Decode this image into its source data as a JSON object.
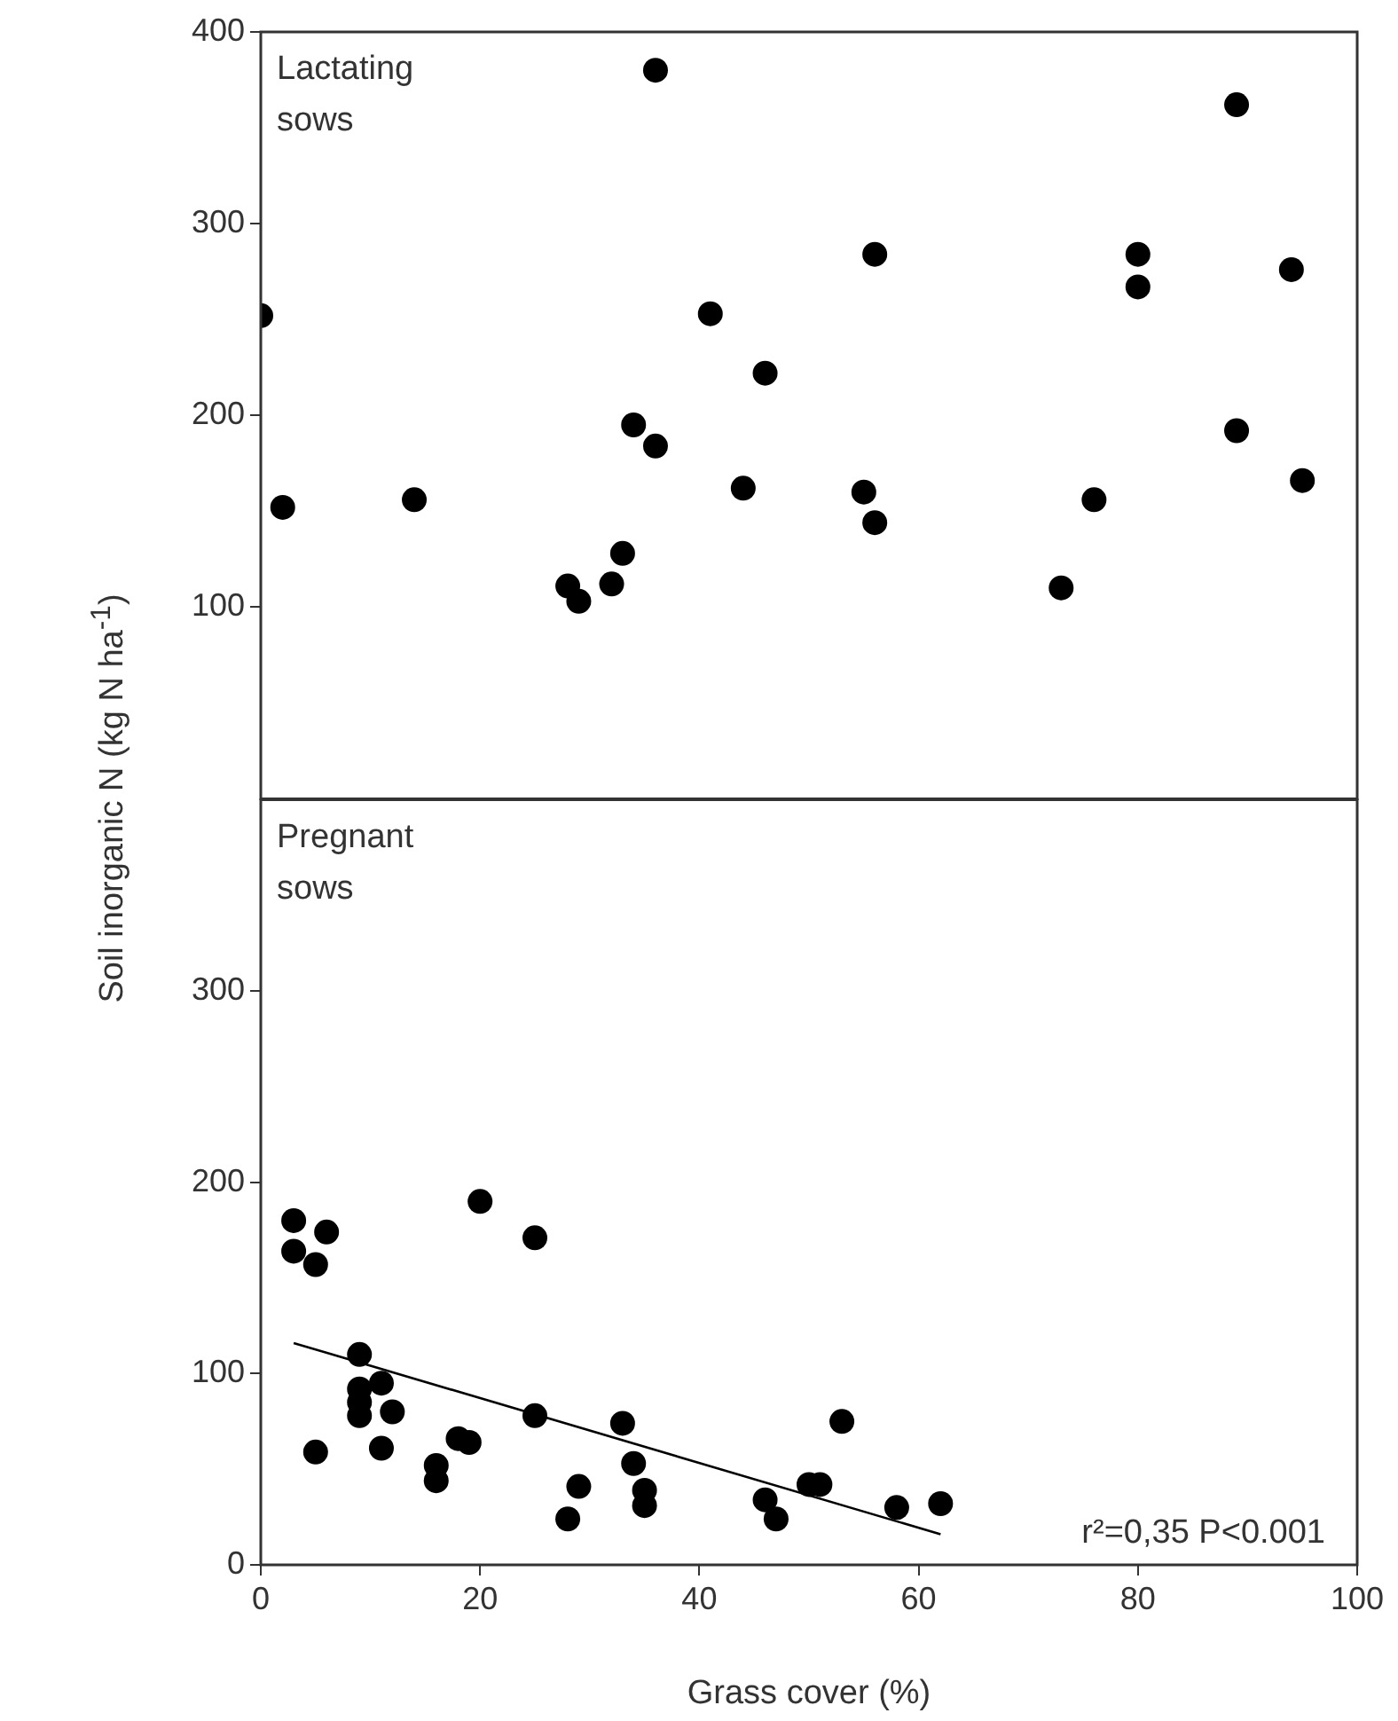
{
  "chart_data": [
    {
      "type": "scatter",
      "ylabel": "Soil inorganic N (kg N ha$^{-1}$)",
      "annotations": [
        "Lactating sows"
      ],
      "xlim": [
        0,
        100
      ],
      "xticks": [
        0,
        20,
        40,
        60,
        80,
        100
      ],
      "ylim": [
        0,
        400
      ],
      "yticks": [
        100,
        200,
        300,
        400
      ],
      "tick_labels": "y",
      "marker": "circle",
      "series": [
        {
          "color": "#000000",
          "x": [
            0,
            2,
            14,
            28,
            29,
            32,
            33,
            34,
            36,
            36,
            41,
            44,
            46,
            55,
            56,
            56,
            73,
            76,
            80,
            80,
            89,
            89,
            94,
            95
          ],
          "values": [
            252,
            152,
            156,
            111,
            103,
            112,
            128,
            195,
            184,
            380,
            253,
            162,
            222,
            160,
            144,
            284,
            110,
            156,
            284,
            267,
            362,
            192,
            276,
            166
          ]
        }
      ]
    },
    {
      "type": "scatter",
      "xlabel": "Grass cover (%)",
      "annotations": [
        "Pregnant sows",
        "r²=0,35 P<0.001"
      ],
      "xlim": [
        0,
        100
      ],
      "xticks": [
        0,
        20,
        40,
        60,
        80,
        100
      ],
      "ylim": [
        0,
        400
      ],
      "yticks": [
        0,
        100,
        200,
        300
      ],
      "marker": "circle",
      "series": [
        {
          "color": "#000000",
          "x": [
            3,
            3,
            6,
            5,
            20,
            25,
            9,
            9,
            11,
            9,
            9,
            12,
            5,
            11,
            16,
            16,
            18,
            19,
            25,
            33,
            34,
            29,
            28,
            35,
            35,
            53,
            46,
            47,
            50,
            51,
            58,
            62
          ],
          "values": [
            180,
            164,
            174,
            157,
            190,
            171,
            110,
            92,
            95,
            85,
            78,
            80,
            59,
            61,
            52,
            44,
            66,
            64,
            78,
            74,
            53,
            41,
            24,
            39,
            31,
            75,
            34,
            24,
            42,
            42,
            30,
            32
          ]
        },
        {
          "type": "line",
          "color": "#000000",
          "marker": "none",
          "x": [
            3,
            62
          ],
          "values": [
            116,
            16
          ]
        }
      ]
    }
  ]
}
